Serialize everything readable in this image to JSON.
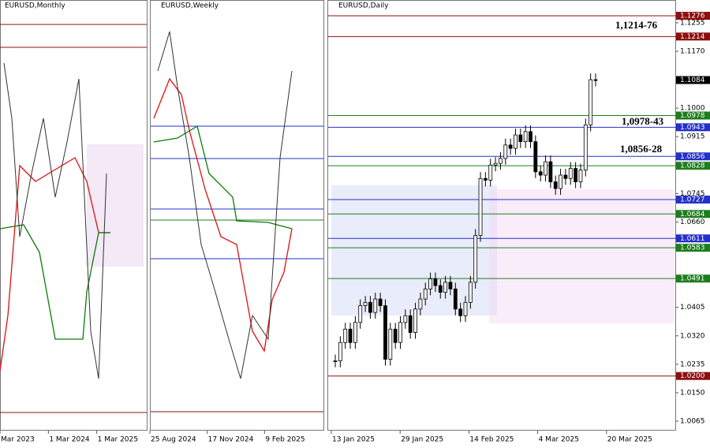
{
  "panels": [
    {
      "title": "EURUSD,Monthly",
      "dates": [
        "Mar 2023",
        "1 Mar 2024",
        "1 Mar 2025"
      ]
    },
    {
      "title": "EURUSD,Weekly",
      "dates": [
        "25 Aug 2024",
        "17 Nov 2024",
        "9 Feb 2025"
      ]
    },
    {
      "title": "EURUSD,Daily",
      "dates": [
        "13 Jan 2025",
        "29 Jan 2025",
        "14 Feb 2025",
        "4 Mar 2025",
        "20 Mar 2025"
      ]
    }
  ],
  "price_ticks": [
    1.1276,
    1.1255,
    1.1214,
    {
      "value": 1.117,
      "label": "1.1170"
    },
    1.1084,
    {
      "value": 1.1,
      "label": "1.1000"
    },
    1.0978,
    1.0943,
    1.0915,
    1.0856,
    1.0828,
    1.0745,
    1.0727,
    1.0684,
    {
      "value": 1.066,
      "label": "1.0660"
    },
    1.0611,
    1.0583,
    1.0491,
    1.0405,
    {
      "value": 1.032,
      "label": "1.0320"
    },
    1.0235,
    {
      "value": 1.02,
      "label": "1.0200"
    },
    {
      "value": 1.015,
      "label": "1.0150"
    },
    1.0065
  ],
  "levels": [
    {
      "value": 1.1276,
      "color": "#8b1010"
    },
    {
      "value": 1.1214,
      "color": "#8b1010"
    },
    {
      "value": 1.0978,
      "color": "#1e7d1e"
    },
    {
      "value": 1.0943,
      "color": "#2430c8"
    },
    {
      "value": 1.0856,
      "color": "#2430c8"
    },
    {
      "value": 1.0828,
      "color": "#1e7d1e"
    },
    {
      "value": 1.0727,
      "color": "#2430c8"
    },
    {
      "value": 1.0684,
      "color": "#1e7d1e"
    },
    {
      "value": 1.0611,
      "color": "#2430c8"
    },
    {
      "value": 1.0583,
      "color": "#1e7d1e"
    },
    {
      "value": 1.0491,
      "color": "#1e7d1e"
    },
    {
      "value": 1.02,
      "color": "#8b1010"
    }
  ],
  "current_price": 1.1084,
  "annotations": [
    "1,1214-76",
    "1,0978-43",
    "1,0856-28"
  ],
  "daily_closes": [
    1.0245,
    1.03,
    1.034,
    1.03,
    1.036,
    1.041,
    1.042,
    1.039,
    1.043,
    1.041,
    1.025,
    1.034,
    1.03,
    1.036,
    1.038,
    1.033,
    1.04,
    1.043,
    1.046,
    1.049,
    1.047,
    1.045,
    1.048,
    1.046,
    1.04,
    1.038,
    1.042,
    1.048,
    1.062,
    1.079,
    1.0785,
    1.083,
    1.0835,
    1.085,
    1.089,
    1.088,
    1.092,
    1.09,
    1.093,
    1.09,
    1.081,
    1.08,
    1.084,
    1.078,
    1.076,
    1.08,
    1.079,
    1.082,
    1.078,
    1.0815,
    1.095,
    1.1085,
    1.1084
  ]
}
